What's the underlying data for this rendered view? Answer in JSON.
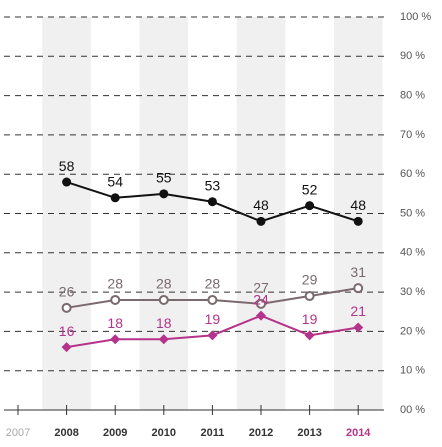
{
  "chart_data": {
    "type": "line",
    "categories": [
      "2007",
      "2008",
      "2009",
      "2010",
      "2011",
      "2012",
      "2013",
      "2014"
    ],
    "series": [
      {
        "color": "#111111",
        "marker": "circle",
        "values": [
          null,
          58,
          54,
          55,
          53,
          48,
          52,
          48
        ]
      },
      {
        "color": "#7a6a6e",
        "marker": "hollow-circle",
        "values": [
          null,
          26,
          28,
          28,
          28,
          27,
          29,
          31
        ]
      },
      {
        "color": "#b5338a",
        "marker": "diamond",
        "values": [
          null,
          16,
          18,
          18,
          19,
          24,
          19,
          21
        ]
      }
    ],
    "ylim": [
      0,
      100
    ],
    "yticks": [
      {
        "value": 0,
        "label": "00 %"
      },
      {
        "value": 10,
        "label": "10 %"
      },
      {
        "value": 20,
        "label": "20 %"
      },
      {
        "value": 30,
        "label": "30 %"
      },
      {
        "value": 40,
        "label": "40 %"
      },
      {
        "value": 50,
        "label": "50 %"
      },
      {
        "value": 60,
        "label": "60 %"
      },
      {
        "value": 70,
        "label": "70 %"
      },
      {
        "value": 80,
        "label": "80 %"
      },
      {
        "value": 90,
        "label": "90 %"
      },
      {
        "value": 100,
        "label": "100 %"
      }
    ],
    "grid": true
  }
}
